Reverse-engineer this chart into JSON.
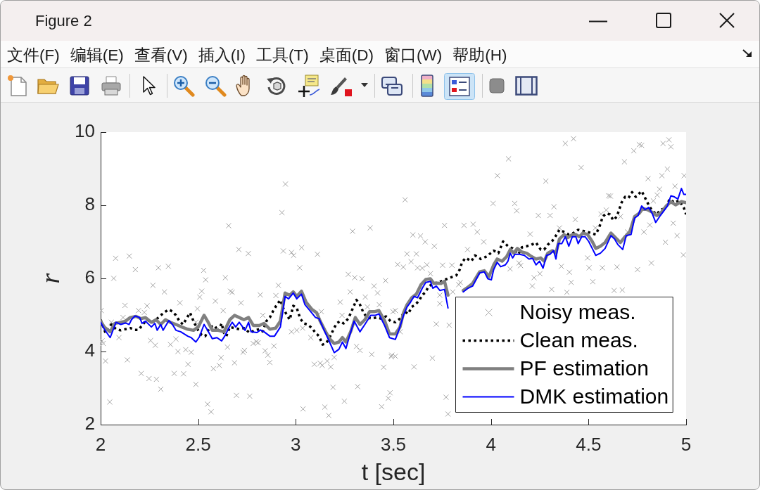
{
  "chart_data": {
    "type": "line",
    "title": "Figure 2",
    "xlabel": "t [sec]",
    "ylabel": "r",
    "annotations": [
      "文件(F)",
      "编辑(E)",
      "查看(V)",
      "插入(I)",
      "工具(T)",
      "桌面(D)",
      "窗口(W)",
      "帮助(H)"
    ],
    "xlim": [
      2,
      5
    ],
    "ylim": [
      2,
      10
    ],
    "xticks": [
      2,
      2.5,
      3,
      3.5,
      4,
      4.5,
      5
    ],
    "yticks": [
      2,
      4,
      6,
      8,
      10
    ],
    "grid": false,
    "legend": "bottom right",
    "series": [
      {
        "name": "Noisy meas.",
        "type": "scatter",
        "color": "#a3a3a3",
        "marker": "cross",
        "x": [
          2.947,
          2.929,
          2.656,
          3.291,
          3.381,
          2.077,
          2.147,
          2.178,
          2.296,
          2.347,
          2.528,
          2.708,
          2.757,
          2.936,
          2.978,
          2.989,
          3.03,
          3.02,
          3.111,
          2.067,
          2.639,
          3.269,
          3.302,
          3.339,
          3.46,
          2.538,
          2.268,
          2.327,
          2.518,
          2.508,
          2.665,
          2.674,
          2.588,
          2.818,
          2.911,
          2.898,
          2.719,
          3.401,
          3.279,
          3.356,
          3.228,
          3.419,
          3.428,
          3.367,
          2.003,
          2.125,
          2.238,
          2.194,
          2.224,
          2.406,
          2.496,
          2.628,
          3.131,
          3.237,
          3.498,
          2.115,
          2.055,
          2.094,
          2.007,
          2.013,
          2.256,
          2.28,
          2.358,
          2.386,
          2.396,
          2.436,
          2.464,
          2.488,
          2.65,
          2.73,
          2.737,
          2.782,
          2.798,
          2.807,
          2.843,
          2.857,
          2.867,
          2.888,
          2.831,
          2.978,
          3.005,
          3.035,
          3.077,
          3.095,
          3.125,
          3.135,
          3.161,
          3.179,
          3.197,
          3.311,
          3.329,
          3.389,
          3.45,
          3.489,
          2.025,
          2.137,
          2.448,
          2.617,
          2.578,
          2.608,
          2.686,
          2.208,
          2.248,
          2.286,
          2.377,
          2.425,
          2.308,
          2.488,
          2.696,
          2.764,
          2.548,
          2.566,
          2.047,
          3.037,
          3.149,
          3.169,
          3.191,
          3.249,
          3.317,
          3.44,
          3.474,
          3.483,
          4.381,
          4.423,
          4.732,
          4.76,
          4.772,
          4.882,
          4.912,
          4.922,
          4.09,
          4.684,
          4.462,
          4.904,
          4.033,
          4.281,
          4.805,
          4.876,
          4.99,
          3.56,
          4.011,
          4.122,
          4.132,
          4.323,
          4.603,
          4.612,
          4.852,
          4.864,
          4.943,
          4.832,
          4.243,
          4.303,
          4.564,
          4.591,
          4.664,
          4.432,
          4.934,
          4.814,
          4.784,
          4.954,
          4.894,
          4.986,
          3.762,
          3.862,
          3.909,
          3.93,
          3.6,
          3.639,
          3.663,
          3.71,
          3.963,
          4.201,
          4.351,
          4.535,
          4.7,
          3.88,
          3.57,
          3.618,
          3.591,
          3.522,
          3.551,
          3.624,
          3.648,
          3.672,
          3.752,
          3.8,
          3.69,
          4.098,
          4.144,
          4.152,
          4.361,
          4.402,
          4.495,
          4.503,
          4.571,
          4.646,
          4.751,
          4.822,
          4.221,
          4.251,
          4.411,
          4.522,
          4.212,
          4.311,
          4.631,
          4.673,
          4.389,
          3.843,
          3.835,
          3.804,
          3.738,
          3.738,
          3.51,
          3.535,
          3.72,
          3.786,
          3.492,
          3.51,
          3.606,
          3.7,
          3.77,
          3.78
        ],
        "values": [
          8.58,
          7.8,
          7.44,
          7.29,
          7.38,
          6.55,
          6.61,
          6.24,
          6.29,
          6.33,
          6.22,
          6.79,
          6.68,
          6.75,
          6.71,
          6.63,
          6.84,
          6.29,
          6.66,
          6.0,
          6.02,
          6.11,
          6.02,
          5.99,
          5.94,
          5.96,
          5.81,
          5.63,
          5.65,
          5.49,
          5.65,
          5.62,
          5.38,
          5.55,
          5.81,
          5.53,
          5.33,
          5.79,
          5.63,
          5.49,
          5.35,
          5.6,
          5.28,
          5.22,
          5.12,
          5.26,
          5.25,
          5.12,
          5.07,
          5.33,
          5.17,
          5.12,
          5.09,
          4.99,
          5.09,
          4.93,
          4.8,
          4.38,
          4.29,
          4.22,
          4.3,
          4.17,
          4.19,
          4.34,
          4.0,
          4.05,
          3.98,
          4.8,
          4.12,
          3.98,
          4.03,
          4.22,
          4.27,
          4.24,
          4.02,
          3.9,
          3.7,
          4.15,
          4.99,
          4.54,
          4.58,
          4.64,
          4.38,
          3.65,
          3.68,
          3.62,
          3.74,
          3.58,
          3.84,
          4.14,
          4.03,
          3.92,
          3.57,
          3.86,
          3.74,
          3.77,
          3.65,
          3.83,
          3.53,
          3.62,
          3.69,
          3.4,
          3.26,
          3.24,
          3.4,
          3.39,
          2.97,
          3.1,
          2.8,
          2.78,
          2.56,
          2.35,
          2.62,
          2.43,
          2.48,
          2.25,
          3.02,
          2.64,
          3.04,
          2.49,
          2.72,
          2.87,
          9.69,
          9.82,
          9.49,
          9.66,
          9.64,
          9.69,
          9.79,
          9.6,
          9.27,
          9.19,
          9.03,
          8.99,
          8.81,
          8.66,
          8.73,
          8.81,
          8.81,
          8.15,
          8.05,
          8.05,
          7.85,
          7.96,
          8.26,
          8.25,
          8.28,
          8.44,
          8.52,
          8.12,
          7.72,
          7.72,
          7.76,
          7.87,
          7.69,
          7.61,
          7.51,
          7.46,
          7.27,
          7.17,
          6.99,
          6.64,
          7.45,
          7.45,
          7.48,
          7.27,
          7.19,
          7.16,
          7.0,
          6.88,
          7.0,
          7.21,
          7.38,
          7.38,
          7.27,
          6.79,
          6.67,
          6.67,
          6.46,
          6.38,
          6.31,
          6.29,
          6.28,
          6.37,
          6.36,
          6.36,
          6.13,
          6.26,
          6.42,
          6.35,
          6.33,
          6.17,
          6.56,
          6.29,
          6.29,
          6.31,
          6.24,
          6.42,
          6.02,
          6.13,
          5.89,
          5.91,
          5.79,
          5.7,
          5.67,
          5.68,
          5.62,
          5.89,
          5.83,
          5.63,
          5.31,
          5.54,
          5.12,
          4.54,
          4.75,
          4.72,
          3.9,
          3.87,
          3.58,
          3.82,
          2.75,
          2.29
        ]
      },
      {
        "name": "Clean meas.",
        "type": "line",
        "color": "#000000",
        "marker": "none",
        "line_style": "dotted",
        "x": [
          2.0,
          2.025,
          2.055,
          2.079,
          2.103,
          2.127,
          2.152,
          2.176,
          2.194,
          2.236,
          2.266,
          2.29,
          2.308,
          2.332,
          2.35,
          2.368,
          2.386,
          2.404,
          2.422,
          2.44,
          2.458,
          2.476,
          2.5,
          2.518,
          2.536,
          2.56,
          2.584,
          2.602,
          2.62,
          2.632,
          2.644,
          2.662,
          2.686,
          2.71,
          2.734,
          2.764,
          2.789,
          2.813,
          2.831,
          2.849,
          2.867,
          2.885,
          2.903,
          2.921,
          2.933,
          2.951,
          2.969,
          2.987,
          3.005,
          3.023,
          3.041,
          3.059,
          3.083,
          3.101,
          3.119,
          3.137,
          3.155,
          3.173,
          3.191,
          3.209,
          3.227,
          3.245,
          3.269,
          3.293,
          3.311,
          3.329,
          3.347,
          3.365,
          3.389,
          3.414,
          3.438,
          3.462,
          3.486,
          3.51,
          3.534,
          3.558,
          3.576,
          3.594,
          3.612,
          3.63,
          3.648,
          3.666,
          3.678,
          3.702,
          3.732,
          3.762,
          3.792,
          3.822,
          3.84,
          3.852,
          3.87,
          3.9,
          3.918,
          3.948,
          3.978,
          4.014,
          4.038,
          4.062,
          4.087,
          4.111,
          4.141,
          4.159,
          4.183,
          4.207,
          4.231,
          4.255,
          4.273,
          4.291,
          4.315,
          4.333,
          4.351,
          4.375,
          4.399,
          4.423,
          4.447,
          4.471,
          4.495,
          4.513,
          4.537,
          4.555,
          4.573,
          4.591,
          4.609,
          4.627,
          4.645,
          4.669,
          4.687,
          4.705,
          4.723,
          4.742,
          4.772,
          4.79,
          4.808,
          4.826,
          4.85,
          4.868,
          4.892,
          4.916,
          4.94,
          4.964,
          4.988,
          5.0
        ],
        "values": [
          4.87,
          4.51,
          4.74,
          4.61,
          4.58,
          4.61,
          4.64,
          4.59,
          4.59,
          4.87,
          4.8,
          4.9,
          4.99,
          5.09,
          5.15,
          5.09,
          4.99,
          4.83,
          4.74,
          4.9,
          5.06,
          4.83,
          4.58,
          4.45,
          4.42,
          4.67,
          4.71,
          4.55,
          4.77,
          4.51,
          4.42,
          4.67,
          4.64,
          4.61,
          4.64,
          4.51,
          4.58,
          4.61,
          4.55,
          4.83,
          4.93,
          5.12,
          5.28,
          5.41,
          5.22,
          5.03,
          4.87,
          5.25,
          5.19,
          4.9,
          4.77,
          4.74,
          4.64,
          4.51,
          4.42,
          4.19,
          4.22,
          4.38,
          4.58,
          4.77,
          4.83,
          4.77,
          4.9,
          5.19,
          5.41,
          5.28,
          5.06,
          4.93,
          4.9,
          4.93,
          4.9,
          4.96,
          4.83,
          4.8,
          4.9,
          5.09,
          5.03,
          5.22,
          5.28,
          5.38,
          5.54,
          5.63,
          5.76,
          5.86,
          5.89,
          5.96,
          6.02,
          6.08,
          6.24,
          6.44,
          6.56,
          6.47,
          6.63,
          6.53,
          6.6,
          6.76,
          6.69,
          7.01,
          6.88,
          6.82,
          6.66,
          6.85,
          6.88,
          6.92,
          6.98,
          6.79,
          6.79,
          6.92,
          7.03,
          7.17,
          7.33,
          7.27,
          7.2,
          7.24,
          7.33,
          7.3,
          7.27,
          7.24,
          7.2,
          7.4,
          7.69,
          7.78,
          7.75,
          7.59,
          7.69,
          8.07,
          8.23,
          8.2,
          8.36,
          8.23,
          8.39,
          8.2,
          8.01,
          7.85,
          7.75,
          7.88,
          7.91,
          8.17,
          8.07,
          8.13,
          7.94,
          7.75
        ]
      },
      {
        "name": "PF estimation",
        "type": "line",
        "color": "#808080",
        "marker": "none",
        "line_style": "solid",
        "x": [
          2.0,
          2.019,
          2.049,
          2.073,
          2.103,
          2.127,
          2.152,
          2.182,
          2.206,
          2.23,
          2.26,
          2.284,
          2.308,
          2.332,
          2.356,
          2.386,
          2.416,
          2.446,
          2.476,
          2.5,
          2.53,
          2.548,
          2.572,
          2.602,
          2.632,
          2.662,
          2.686,
          2.71,
          2.734,
          2.758,
          2.783,
          2.813,
          2.837,
          2.867,
          2.897,
          2.921,
          2.945,
          2.969,
          2.987,
          3.005,
          3.029,
          3.053,
          3.083,
          3.107,
          3.125,
          3.149,
          3.173,
          3.197,
          3.221,
          3.239,
          3.257,
          3.281,
          3.305,
          3.329,
          3.354,
          3.378,
          3.402,
          3.426,
          3.456,
          3.48,
          3.51,
          3.534,
          3.552,
          3.57,
          3.594,
          3.618,
          3.642,
          3.666,
          3.69,
          3.708,
          3.726,
          3.744,
          3.762,
          3.78,
          3.82,
          3.858,
          3.882,
          3.906,
          3.942,
          3.966,
          3.99,
          4.014,
          4.032,
          4.057,
          4.081,
          4.099,
          4.117,
          4.135,
          4.159,
          4.183,
          4.207,
          4.231,
          4.255,
          4.273,
          4.291,
          4.315,
          4.333,
          4.351,
          4.375,
          4.393,
          4.417,
          4.435,
          4.453,
          4.471,
          4.495,
          4.519,
          4.537,
          4.561,
          4.585,
          4.615,
          4.639,
          4.663,
          4.687,
          4.711,
          4.736,
          4.76,
          4.778,
          4.802,
          4.826,
          4.85,
          4.874,
          4.898,
          4.922,
          4.946,
          4.976,
          5.0
        ],
        "values": [
          4.83,
          4.67,
          4.54,
          4.77,
          4.8,
          4.83,
          4.93,
          4.96,
          4.9,
          4.93,
          4.8,
          4.87,
          4.74,
          4.87,
          4.8,
          4.74,
          4.67,
          4.61,
          4.58,
          4.67,
          4.99,
          4.83,
          4.58,
          4.58,
          4.54,
          4.87,
          4.99,
          4.93,
          4.87,
          4.93,
          4.71,
          4.71,
          4.77,
          4.61,
          4.64,
          4.83,
          5.6,
          5.54,
          5.63,
          5.51,
          5.65,
          5.35,
          5.15,
          5.06,
          4.83,
          4.58,
          4.35,
          4.22,
          4.26,
          4.38,
          4.26,
          4.54,
          4.93,
          4.74,
          4.87,
          5.09,
          5.09,
          5.12,
          4.83,
          4.48,
          4.48,
          4.67,
          5.06,
          5.28,
          5.47,
          5.57,
          5.83,
          5.97,
          5.99,
          5.86,
          5.87,
          5.86,
          5.92,
          5.54,
          null,
          5.67,
          5.76,
          5.86,
          6.18,
          6.21,
          6.05,
          6.37,
          6.53,
          6.47,
          6.6,
          6.79,
          6.69,
          6.82,
          6.72,
          6.69,
          6.6,
          6.53,
          6.56,
          6.47,
          6.69,
          6.76,
          6.69,
          7.08,
          7.2,
          7.11,
          7.2,
          7.2,
          7.14,
          7.24,
          7.2,
          7.01,
          6.82,
          6.88,
          6.98,
          7.24,
          7.11,
          6.98,
          7.14,
          7.27,
          7.69,
          7.78,
          7.91,
          7.88,
          7.81,
          7.72,
          7.81,
          7.98,
          8.1,
          8.01,
          8.1,
          8.07
        ]
      },
      {
        "name": "DMK estimation",
        "type": "line",
        "color": "#0000ff",
        "marker": "none",
        "line_style": "solid",
        "x": [
          2.0,
          2.019,
          2.049,
          2.079,
          2.103,
          2.127,
          2.146,
          2.158,
          2.176,
          2.2,
          2.212,
          2.23,
          2.26,
          2.278,
          2.29,
          2.308,
          2.32,
          2.35,
          2.368,
          2.386,
          2.41,
          2.446,
          2.464,
          2.488,
          2.506,
          2.53,
          2.548,
          2.572,
          2.596,
          2.62,
          2.638,
          2.656,
          2.674,
          2.692,
          2.71,
          2.728,
          2.74,
          2.758,
          2.771,
          2.801,
          2.819,
          2.837,
          2.867,
          2.891,
          2.921,
          2.945,
          2.963,
          2.987,
          3.005,
          3.029,
          3.047,
          3.077,
          3.101,
          3.119,
          3.143,
          3.173,
          3.197,
          3.221,
          3.239,
          3.257,
          3.275,
          3.299,
          3.329,
          3.354,
          3.384,
          3.408,
          3.426,
          3.456,
          3.48,
          3.51,
          3.528,
          3.552,
          3.57,
          3.588,
          3.606,
          3.624,
          3.648,
          3.666,
          3.69,
          3.702,
          3.72,
          3.738,
          3.762,
          3.78,
          3.82,
          3.858,
          3.882,
          3.906,
          3.942,
          3.966,
          3.984,
          4.002,
          4.014,
          4.032,
          4.05,
          4.074,
          4.087,
          4.099,
          4.111,
          4.123,
          4.147,
          4.171,
          4.195,
          4.213,
          4.231,
          4.249,
          4.267,
          4.285,
          4.303,
          4.321,
          4.333,
          4.345,
          4.363,
          4.381,
          4.399,
          4.417,
          4.435,
          4.447,
          4.465,
          4.483,
          4.501,
          4.519,
          4.537,
          4.561,
          4.585,
          4.615,
          4.633,
          4.651,
          4.675,
          4.693,
          4.718,
          4.736,
          4.754,
          4.772,
          4.79,
          4.808,
          4.826,
          4.844,
          4.868,
          4.886,
          4.904,
          4.922,
          4.94,
          4.958,
          4.976,
          4.988,
          5.0
        ],
        "values": [
          4.8,
          4.61,
          4.38,
          4.8,
          4.74,
          4.78,
          4.74,
          4.87,
          4.97,
          4.93,
          4.77,
          4.83,
          4.67,
          4.77,
          4.58,
          4.74,
          4.58,
          4.85,
          4.74,
          4.58,
          4.54,
          4.42,
          4.38,
          4.26,
          4.4,
          4.74,
          4.58,
          4.35,
          4.38,
          4.29,
          4.44,
          4.64,
          4.8,
          4.67,
          4.8,
          4.67,
          4.58,
          4.8,
          4.54,
          4.52,
          4.59,
          4.54,
          4.42,
          4.42,
          4.67,
          5.51,
          5.44,
          5.6,
          5.44,
          5.57,
          5.28,
          5.09,
          4.93,
          4.9,
          4.61,
          4.26,
          3.97,
          4.06,
          4.26,
          4.08,
          4.42,
          4.83,
          4.54,
          4.74,
          4.99,
          4.99,
          5.03,
          4.7,
          4.38,
          4.33,
          4.58,
          4.99,
          5.22,
          5.35,
          5.51,
          5.47,
          5.73,
          5.89,
          5.92,
          5.73,
          5.79,
          5.67,
          5.7,
          5.19,
          null,
          5.63,
          5.73,
          5.79,
          6.15,
          6.18,
          5.99,
          5.96,
          6.24,
          6.44,
          6.32,
          6.37,
          6.47,
          6.69,
          6.56,
          6.66,
          6.66,
          6.63,
          6.53,
          6.55,
          6.37,
          6.47,
          6.28,
          6.63,
          6.66,
          6.76,
          6.53,
          6.95,
          6.95,
          7.14,
          6.88,
          7.14,
          7.14,
          6.95,
          7.14,
          7.14,
          7.01,
          6.82,
          6.63,
          6.69,
          6.82,
          7.17,
          7.08,
          6.92,
          6.79,
          7.17,
          7.2,
          7.65,
          7.72,
          7.98,
          7.88,
          7.94,
          7.78,
          7.53,
          7.72,
          7.85,
          7.98,
          8.26,
          8.23,
          8.17,
          8.46,
          8.3,
          8.3
        ]
      }
    ]
  }
}
